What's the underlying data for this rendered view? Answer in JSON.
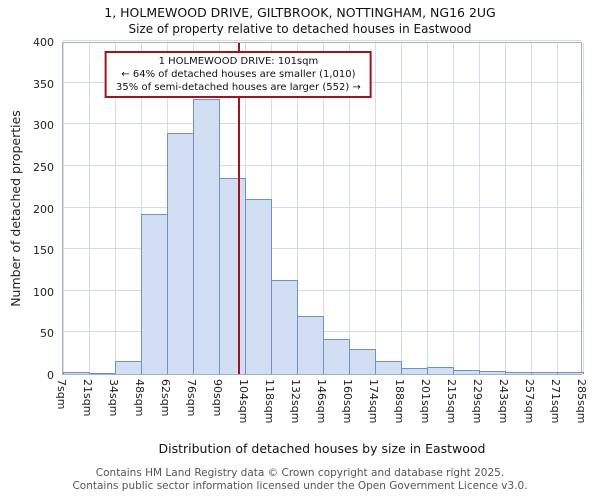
{
  "title": "1, HOLMEWOOD DRIVE, GILTBROOK, NOTTINGHAM, NG16 2UG",
  "subtitle": "Size of property relative to detached houses in Eastwood",
  "annotation": {
    "line1": "1 HOLMEWOOD DRIVE: 101sqm",
    "line2": "← 64% of detached houses are smaller (1,010)",
    "line3": "35% of semi-detached houses are larger (552) →"
  },
  "footer": {
    "line1": "Contains HM Land Registry data © Crown copyright and database right 2025.",
    "line2": "Contains public sector information licensed under the Open Government Licence v3.0."
  },
  "chart_data": {
    "type": "bar",
    "title": "1, HOLMEWOOD DRIVE, GILTBROOK, NOTTINGHAM, NG16 2UG — Size of property relative to detached houses in Eastwood",
    "xlabel": "Distribution of detached houses by size in Eastwood",
    "ylabel": "Number of detached properties",
    "x_tick_labels": [
      "7sqm",
      "21sqm",
      "34sqm",
      "48sqm",
      "62sqm",
      "76sqm",
      "90sqm",
      "104sqm",
      "118sqm",
      "132sqm",
      "146sqm",
      "160sqm",
      "174sqm",
      "188sqm",
      "201sqm",
      "215sqm",
      "229sqm",
      "243sqm",
      "257sqm",
      "271sqm",
      "285sqm"
    ],
    "values": [
      2,
      1,
      16,
      192,
      290,
      330,
      235,
      210,
      113,
      70,
      42,
      30,
      16,
      7,
      8,
      5,
      4,
      2,
      2,
      3
    ],
    "y_ticks": [
      0,
      50,
      100,
      150,
      200,
      250,
      300,
      350,
      400
    ],
    "ylim": [
      0,
      400
    ],
    "grid": true,
    "legend": "none",
    "marker_value": 101,
    "marker_color": "#a41220",
    "bar_fill": "#d2dff2",
    "bar_border": "#6b93c5"
  }
}
